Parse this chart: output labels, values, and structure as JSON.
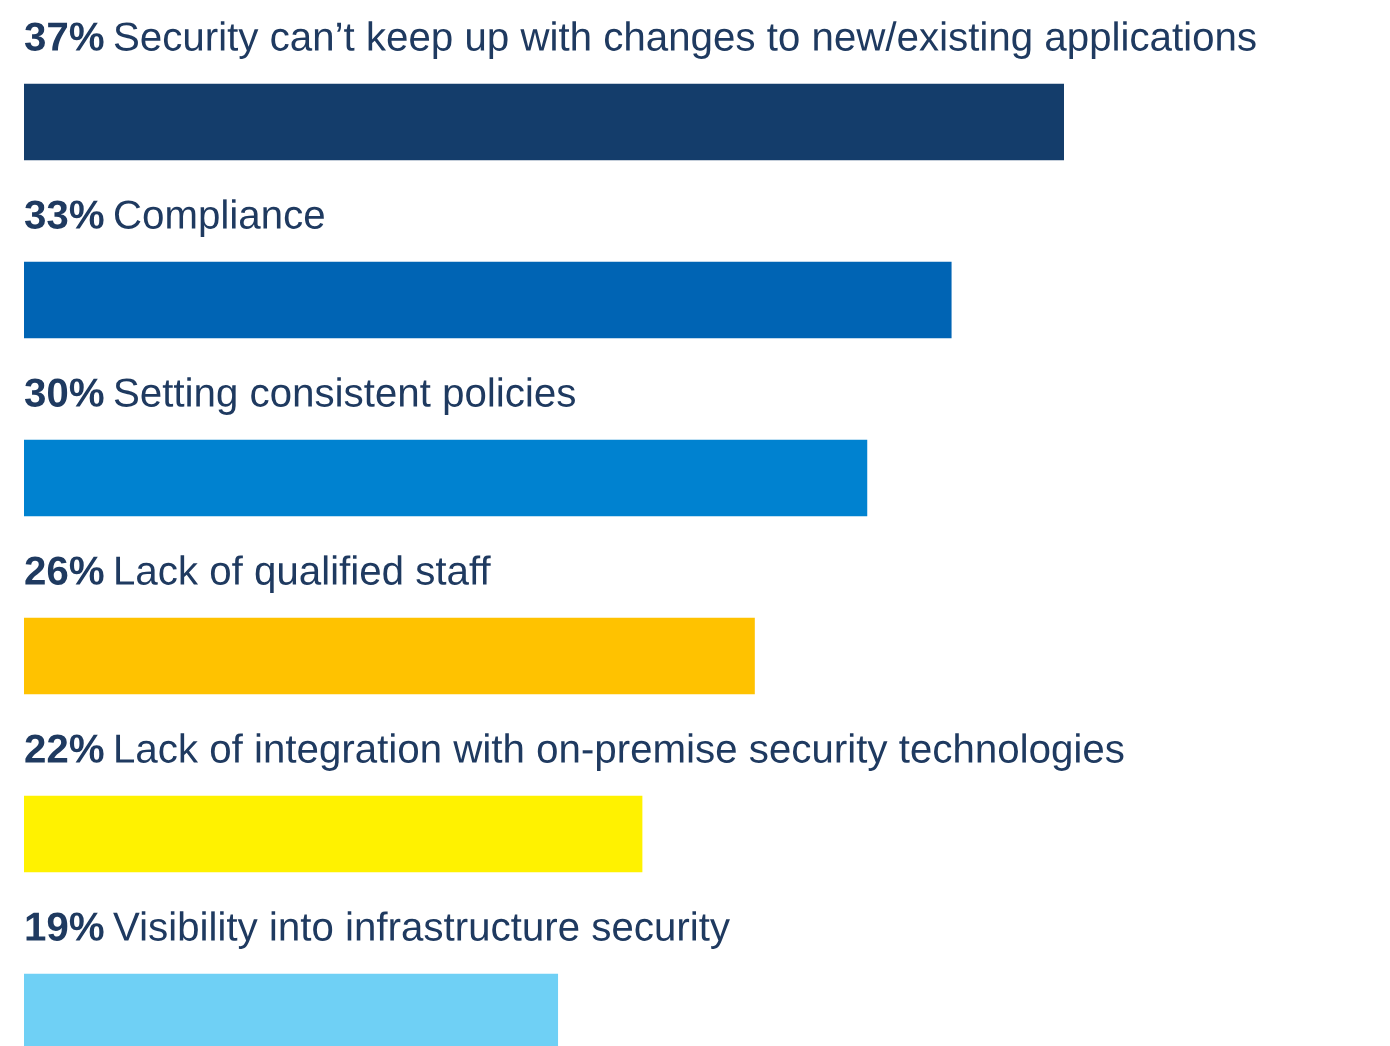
{
  "chart_data": {
    "type": "bar",
    "orientation": "horizontal",
    "data_labels": true,
    "categories": [
      "Security can’t keep up with changes to new/existing applications",
      "Compliance",
      "Setting consistent policies",
      "Lack of qualified staff",
      "Lack of integration with on-premise security technologies",
      "Visibility into infrastructure security"
    ],
    "values": [
      37,
      33,
      30,
      26,
      22,
      19
    ],
    "value_labels": [
      "37%",
      "33%",
      "30%",
      "26%",
      "22%",
      "19%"
    ],
    "colors": [
      "#143d6b",
      "#0064b4",
      "#0082d0",
      "#ffc200",
      "#fff200",
      "#6fd0f5"
    ]
  }
}
